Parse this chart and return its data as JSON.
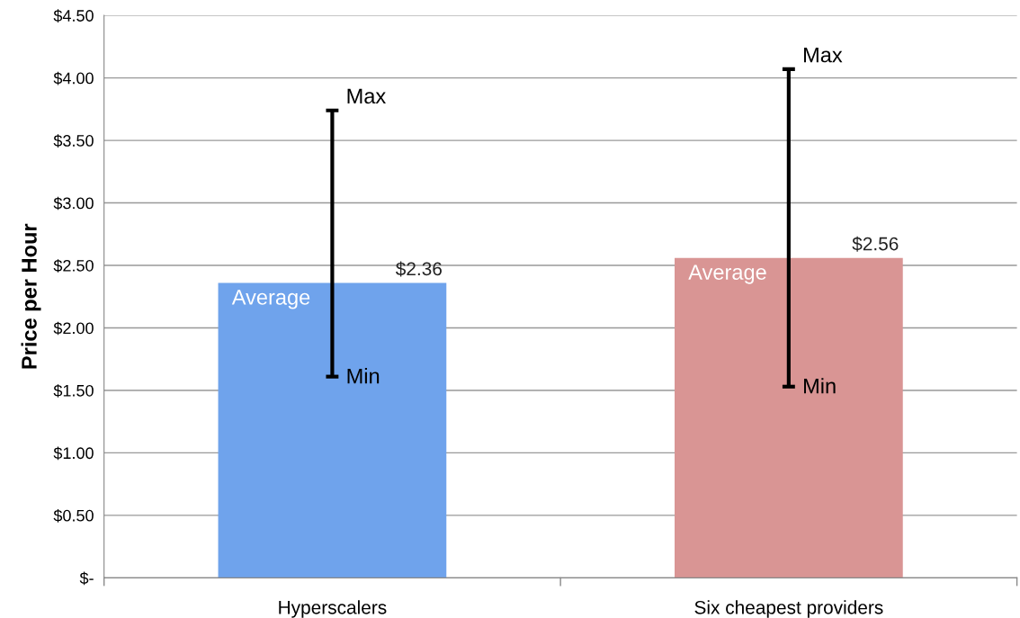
{
  "chart_data": {
    "type": "bar",
    "categories": [
      "Hyperscalers",
      "Six cheapest providers"
    ],
    "values": [
      2.36,
      2.56
    ],
    "colors": [
      "#6fa3ec",
      "#d99594"
    ],
    "value_labels": [
      "$2.36",
      "$2.56"
    ],
    "errors": [
      [
        1.61,
        3.74
      ],
      [
        1.53,
        4.07
      ]
    ],
    "ylabel": "Price per Hour",
    "ylim": [
      0,
      4.5
    ],
    "yticks": [
      {
        "value": 0,
        "label": "$-"
      },
      {
        "value": 0.5,
        "label": "$0.50"
      },
      {
        "value": 1.0,
        "label": "$1.00"
      },
      {
        "value": 1.5,
        "label": "$1.50"
      },
      {
        "value": 2.0,
        "label": "$2.00"
      },
      {
        "value": 2.5,
        "label": "$2.50"
      },
      {
        "value": 3.0,
        "label": "$3.00"
      },
      {
        "value": 3.5,
        "label": "$3.50"
      },
      {
        "value": 4.0,
        "label": "$4.00"
      },
      {
        "value": 4.5,
        "label": "$4.50"
      }
    ],
    "grid": "y",
    "annotations": [
      {
        "text": "Max",
        "x": "Hyperscalers",
        "y": 3.74
      },
      {
        "text": "Min",
        "x": "Hyperscalers",
        "y": 1.61
      },
      {
        "text": "Average",
        "x": "Hyperscalers",
        "y": 2.36
      },
      {
        "text": "Max",
        "x": "Six cheapest providers",
        "y": 4.07
      },
      {
        "text": "Min",
        "x": "Six cheapest providers",
        "y": 1.53
      },
      {
        "text": "Average",
        "x": "Six cheapest providers",
        "y": 2.56
      }
    ]
  }
}
